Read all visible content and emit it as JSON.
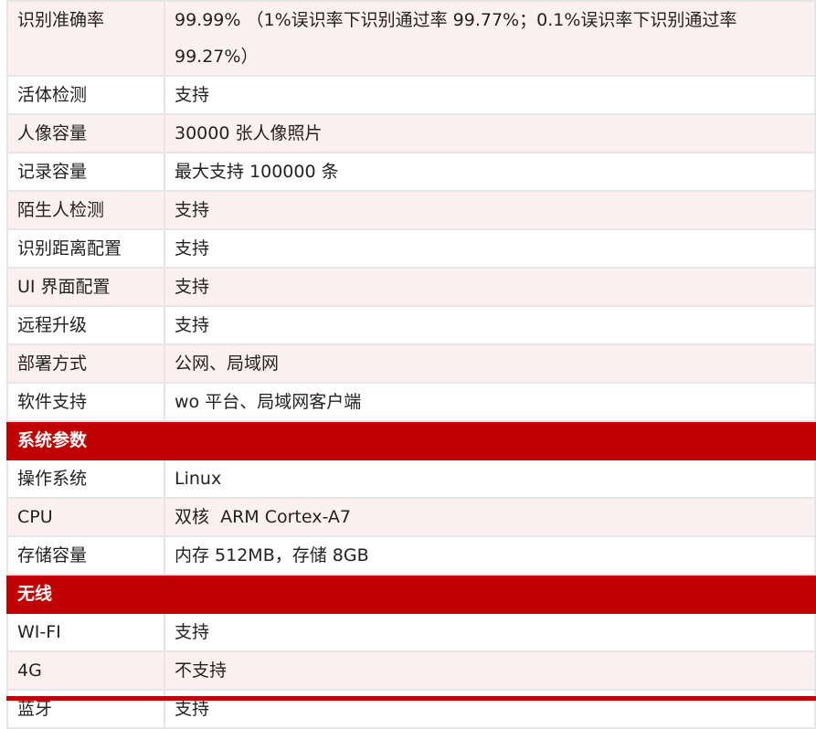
{
  "rows1": [
    {
      "k": "识别准确率",
      "v": "99.99% （1%误识率下识别通过率 99.77%；0.1%误识率下识别通过率 99.27%）"
    },
    {
      "k": "活体检测",
      "v": "支持"
    },
    {
      "k": "人像容量",
      "v": "30000 张人像照片"
    },
    {
      "k": "记录容量",
      "v": "最大支持 100000 条"
    },
    {
      "k": "陌生人检测",
      "v": "支持"
    },
    {
      "k": "识别距离配置",
      "v": "支持"
    },
    {
      "k": "UI 界面配置",
      "v": "支持"
    },
    {
      "k": "远程升级",
      "v": "支持"
    },
    {
      "k": "部署方式",
      "v": "公网、局域网"
    },
    {
      "k": "软件支持",
      "v": "wo 平台、局域网客户端"
    }
  ],
  "section_system": "系统参数",
  "rows2": [
    {
      "k": "操作系统",
      "v": "Linux"
    },
    {
      "k": "CPU",
      "v": "双核  ARM Cortex-A7"
    },
    {
      "k": "存储容量",
      "v": "内存 512MB，存储 8GB"
    }
  ],
  "section_wireless": "无线",
  "rows3": [
    {
      "k": "WI-FI",
      "v": "支持"
    },
    {
      "k": "4G",
      "v": "不支持"
    },
    {
      "k": "蓝牙",
      "v": "支持"
    }
  ],
  "colors": {
    "header": "#c00000",
    "stripe": "#fdf0f0"
  }
}
